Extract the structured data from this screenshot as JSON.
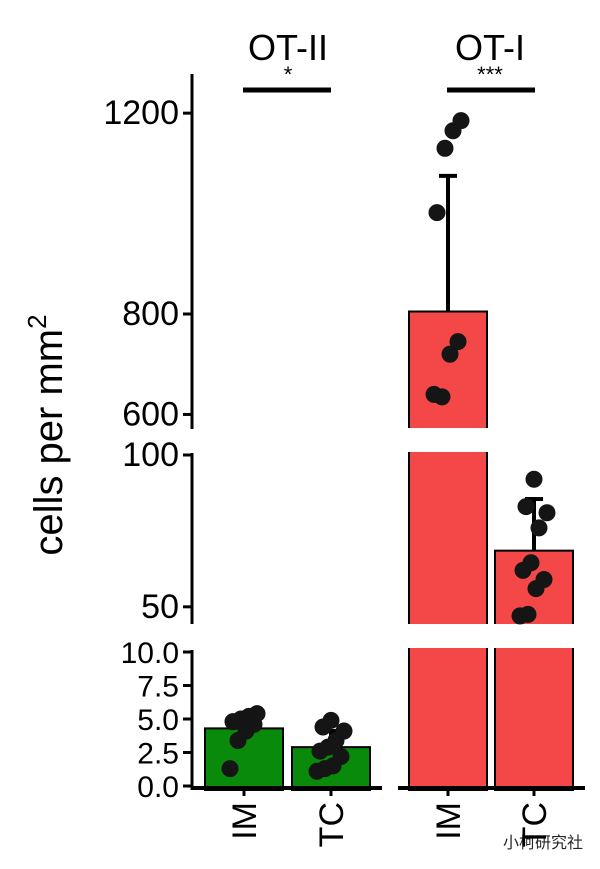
{
  "chart_data": {
    "type": "bar",
    "ylabel": "cells per mm",
    "ylabel_superscript": "2",
    "axis_break": "broken y-axis with three segments",
    "segments": [
      {
        "ylim": [
          0,
          10
        ],
        "ticks": [
          "0.0",
          "2.5",
          "5.0",
          "7.5",
          "10.0"
        ]
      },
      {
        "ylim": [
          45,
          100
        ],
        "ticks": [
          "50",
          "100"
        ]
      },
      {
        "ylim": [
          575,
          1270
        ],
        "ticks": [
          "600",
          "800",
          "1200"
        ]
      }
    ],
    "groups": [
      {
        "name": "OT-II",
        "significance": "*",
        "color": "#0a8a0a",
        "bars": [
          {
            "category": "IM",
            "value": 4.3,
            "error": null,
            "points": [
              1.3,
              3.4,
              4.1,
              4.6,
              4.8,
              5.0,
              5.2,
              5.4
            ]
          },
          {
            "category": "TC",
            "value": 2.9,
            "error": 1.2,
            "points": [
              1.1,
              1.3,
              1.5,
              2.2,
              2.6,
              2.9,
              3.4,
              4.1,
              4.4,
              4.9
            ]
          }
        ]
      },
      {
        "name": "OT-I",
        "significance": "***",
        "color": "#f44848",
        "bars": [
          {
            "category": "IM",
            "value": 805,
            "error": 270,
            "points": [
              640,
              635,
              720,
              745,
              1002,
              1130,
              1165,
              1185
            ]
          },
          {
            "category": "TC",
            "value": 68.5,
            "error": 17,
            "points": [
              47,
              47.5,
              56,
              59,
              62,
              64.5,
              76,
              81,
              83,
              92
            ]
          }
        ]
      }
    ],
    "x_tick_labels": [
      "IM",
      "TC",
      "IM",
      "TC"
    ],
    "watermark": "小柯研究社"
  }
}
